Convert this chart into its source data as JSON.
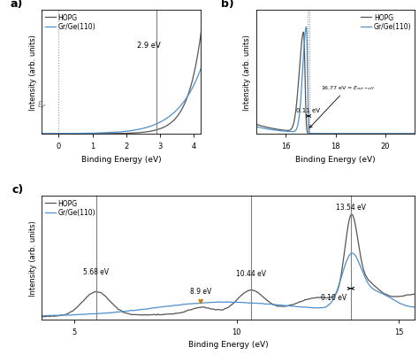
{
  "fig_bg": "#ffffff",
  "panel_bg": "#ffffff",
  "hopg_color": "#555555",
  "gr_color": "#4d8fcc",
  "orange_color": "#cc7700",
  "a_xlim": [
    -0.5,
    4.2
  ],
  "a_xticks": [
    0,
    1,
    2,
    3,
    4
  ],
  "a_xlabel": "Binding Energy (eV)",
  "a_ylabel": "Intensity (arb. units)",
  "a_label": "a)",
  "b_xlim": [
    14.8,
    21.2
  ],
  "b_xticks": [
    16,
    18,
    20
  ],
  "b_xlabel": "Binding Energy (eV)",
  "b_ylabel": "Intensity (arb. units)",
  "b_label": "b)",
  "b_hopg_peak": 16.72,
  "b_gr_peak": 16.83,
  "c_xlim": [
    4.0,
    15.5
  ],
  "c_xticks": [
    5,
    10,
    15
  ],
  "c_xlabel": "Binding Energy (eV)",
  "c_ylabel": "Intensity (arb. units)",
  "c_label": "c)",
  "legend_hopg": "HOPG",
  "legend_gr": "Gr/Ge(110)"
}
